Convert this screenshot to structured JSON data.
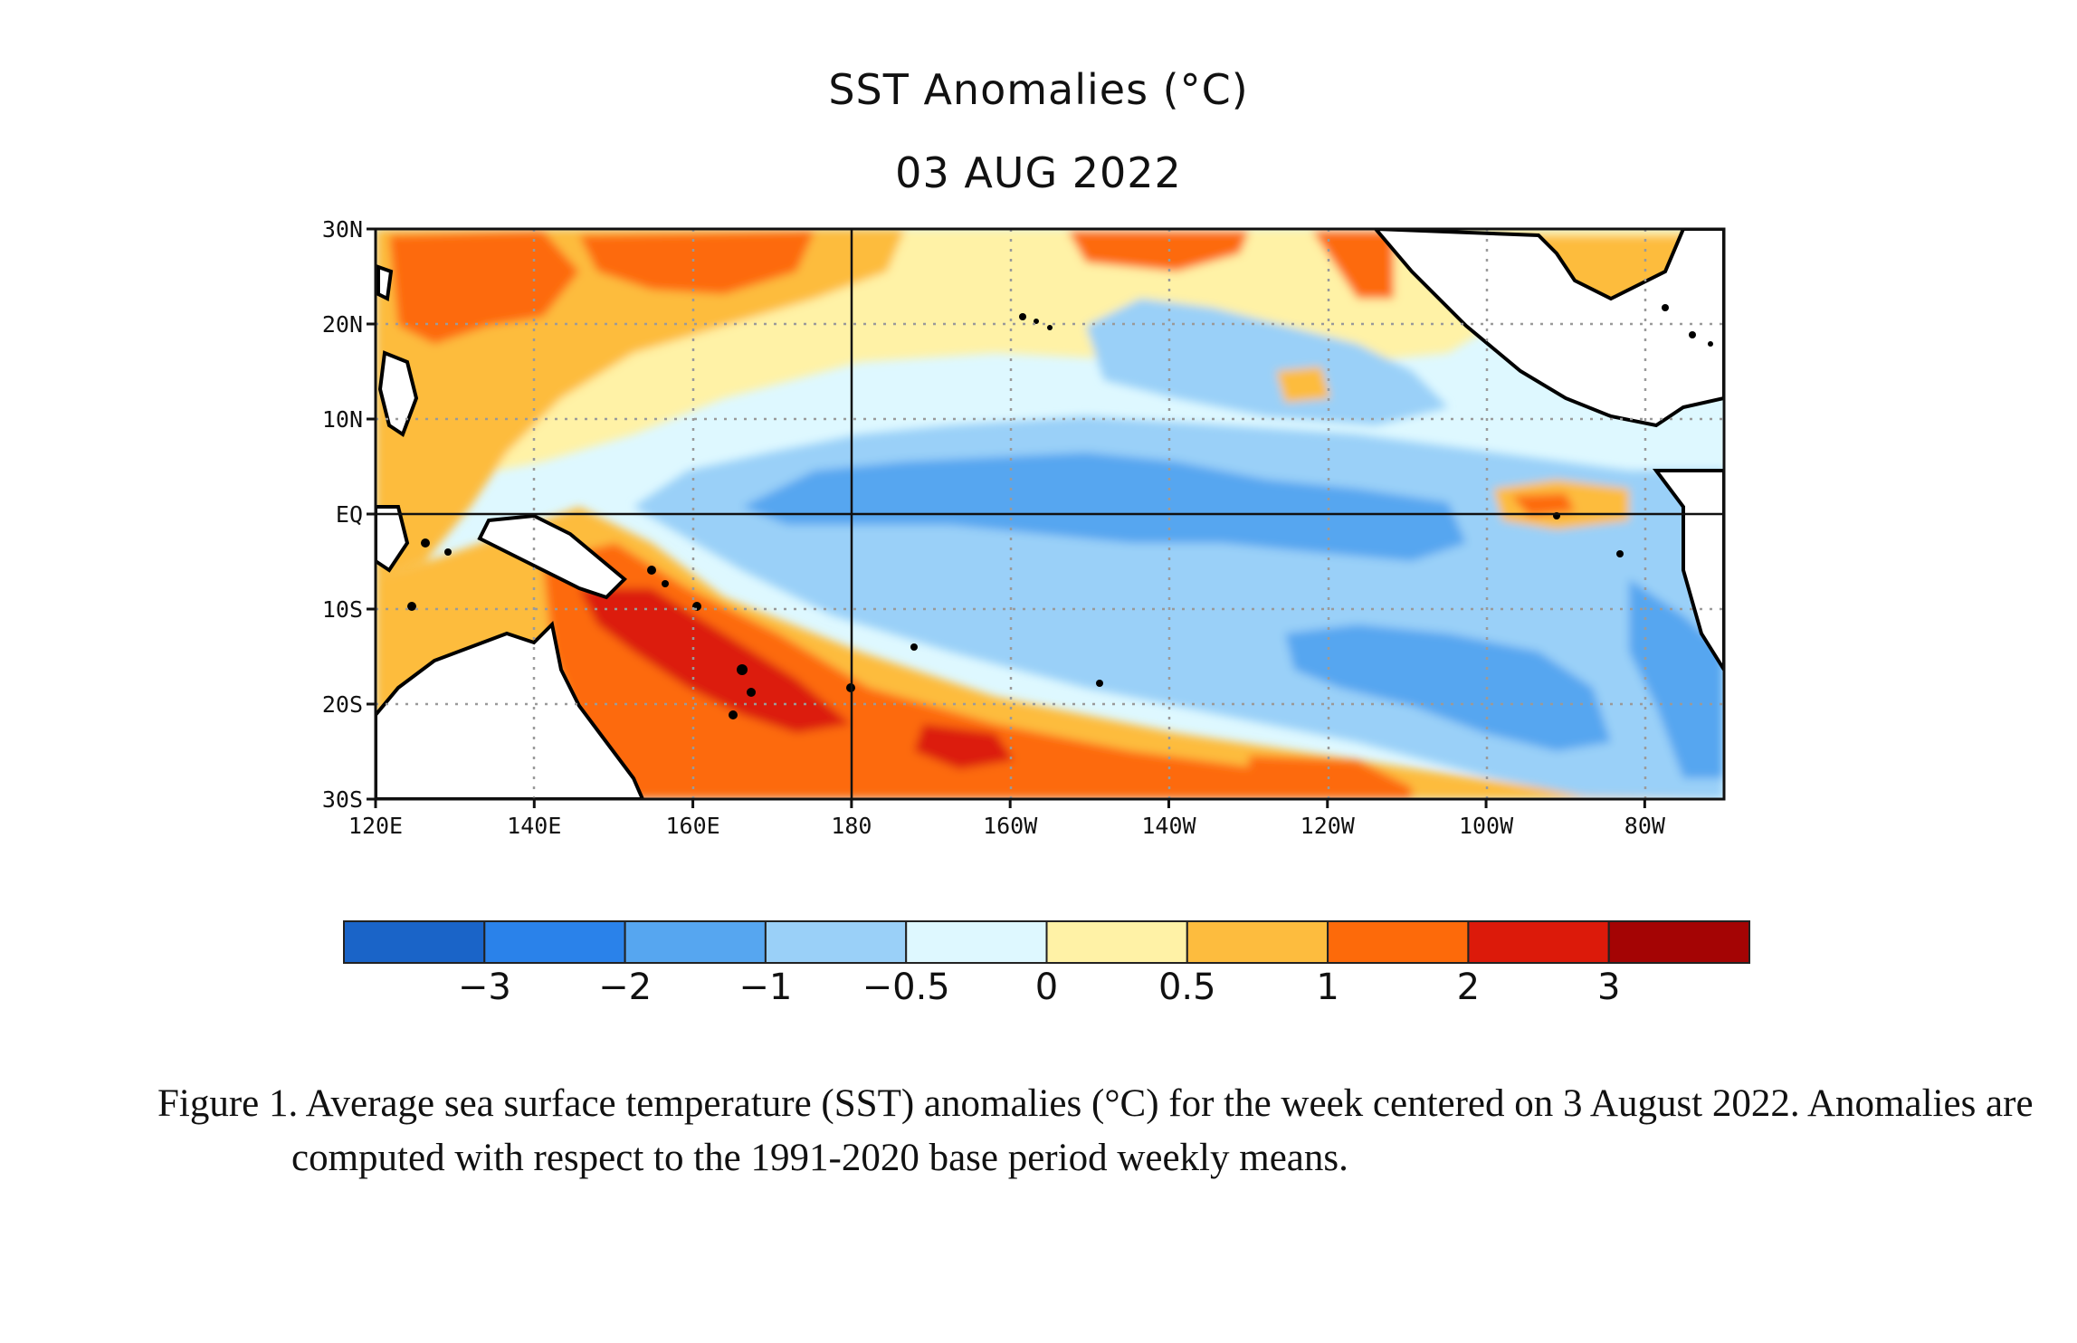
{
  "title": "SST Anomalies (°C)",
  "date_label": "03 AUG 2022",
  "caption": "Figure 1. Average sea surface temperature (SST) anomalies (°C) for the week centered on 3 August 2022.  Anomalies are computed with respect to the 1991-2020 base period weekly means.",
  "map": {
    "lon_labels": [
      "120E",
      "140E",
      "160E",
      "180",
      "160W",
      "140W",
      "120W",
      "100W",
      "80W"
    ],
    "lat_labels": [
      "30N",
      "20N",
      "10N",
      "EQ",
      "10S",
      "20S",
      "30S"
    ],
    "lon_range": [
      "120E",
      "70W"
    ],
    "lat_range": [
      "30S",
      "30N"
    ],
    "reference_lines": [
      "EQ",
      "180"
    ]
  },
  "colorbar": {
    "ticks": [
      "−3",
      "−2",
      "−1",
      "−0.5",
      "0",
      "0.5",
      "1",
      "2",
      "3"
    ],
    "colors": [
      "#1a64c8",
      "#2a82ea",
      "#56a6f0",
      "#9ad0f8",
      "#def8ff",
      "#fff2a6",
      "#fdbc3e",
      "#fd6a0a",
      "#dc1a0a",
      "#a40404"
    ]
  },
  "anomaly_regions": [
    {
      "name": "western-warm-pool",
      "class": "0.5 to 1"
    },
    {
      "name": "north-subtropical-warm",
      "class": "1 to 2"
    },
    {
      "name": "southwest-pacific-warm",
      "class": "2 to 3"
    },
    {
      "name": "equatorial-cold-tongue",
      "class": "-1 to -0.5"
    },
    {
      "name": "southeast-pacific-cool",
      "class": "-1 to -0.5"
    },
    {
      "name": "eastern-equatorial-warm-spot",
      "class": "1 to 2"
    }
  ]
}
